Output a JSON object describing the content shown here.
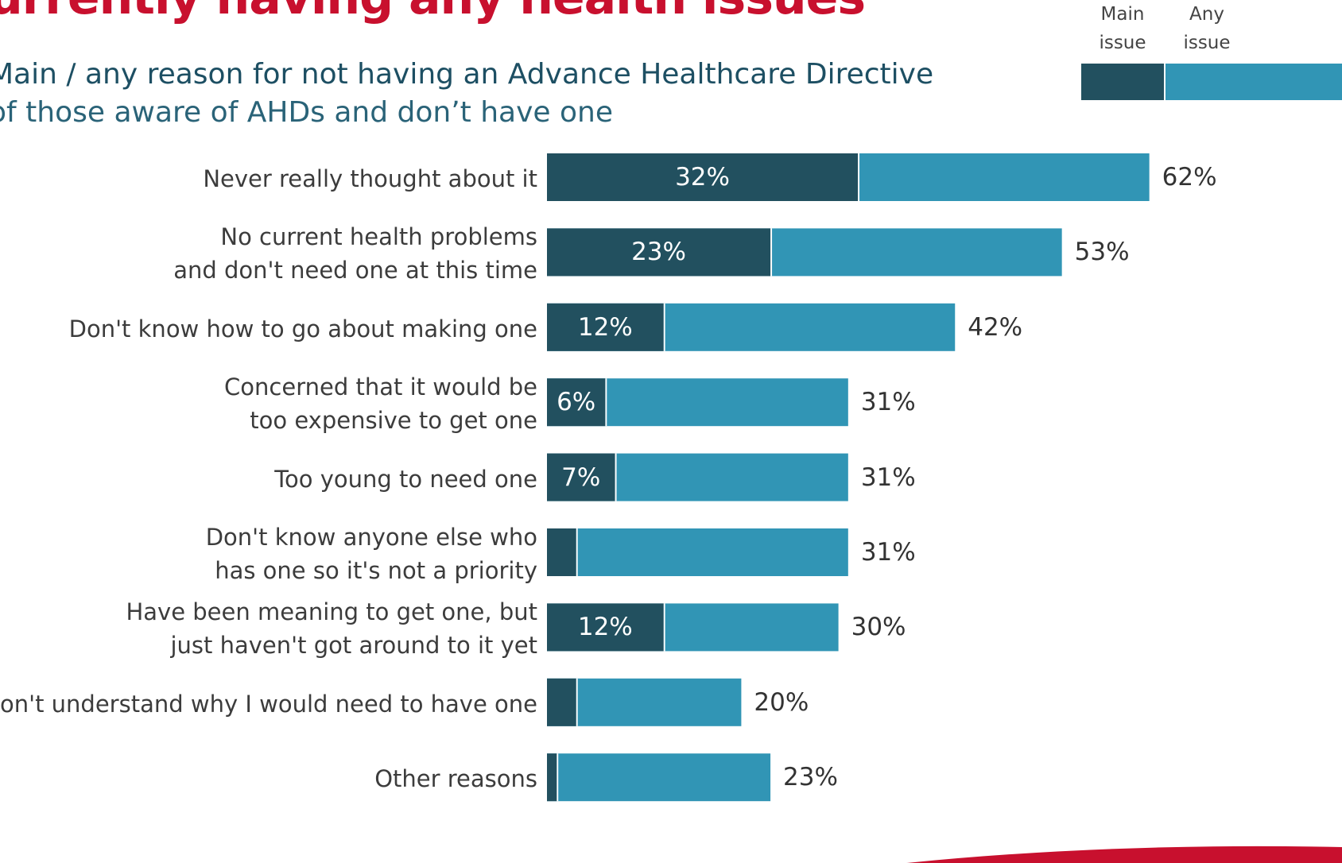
{
  "header": {
    "title": "urrently having any health issues",
    "subtitle": "Main / any reason for not having an Advance Healthcare Directive",
    "base": "of those aware of AHDs and don’t have one"
  },
  "legend": [
    {
      "line1": "Main",
      "line2": "issue",
      "color": "#22505f"
    },
    {
      "line1": "Any",
      "line2": "issue",
      "color": "#3195b5"
    }
  ],
  "chart_data": {
    "type": "bar",
    "orientation": "horizontal",
    "categories": [
      [
        "Never really thought about it"
      ],
      [
        "No current health problems",
        "and don't need one at this time"
      ],
      [
        "Don't know how to go about making one"
      ],
      [
        "Concerned that it would be",
        "too expensive to get one"
      ],
      [
        "Too young to need one"
      ],
      [
        "Don't know anyone else who",
        "has one so it's not a priority"
      ],
      [
        "Have been meaning to get one, but",
        "just haven't got around to it yet"
      ],
      [
        "Don't understand why I would need to have one"
      ],
      [
        "Other reasons"
      ]
    ],
    "series": [
      {
        "name": "Main issue",
        "color": "#22505f",
        "values": [
          32,
          23,
          12,
          6,
          7,
          3,
          12,
          3,
          1
        ],
        "labels": [
          "32%",
          "23%",
          "12%",
          "6%",
          "7%",
          "",
          "12%",
          "",
          ""
        ]
      },
      {
        "name": "Any issue",
        "color": "#3195b5",
        "values": [
          62,
          53,
          42,
          31,
          31,
          31,
          30,
          20,
          23
        ],
        "labels": [
          "62%",
          "53%",
          "42%",
          "31%",
          "31%",
          "31%",
          "30%",
          "20%",
          "23%"
        ]
      }
    ],
    "unit": "%",
    "xlim": [
      0,
      62
    ],
    "grid": false,
    "legend_position": "top-right"
  },
  "accent": "#c8102e"
}
